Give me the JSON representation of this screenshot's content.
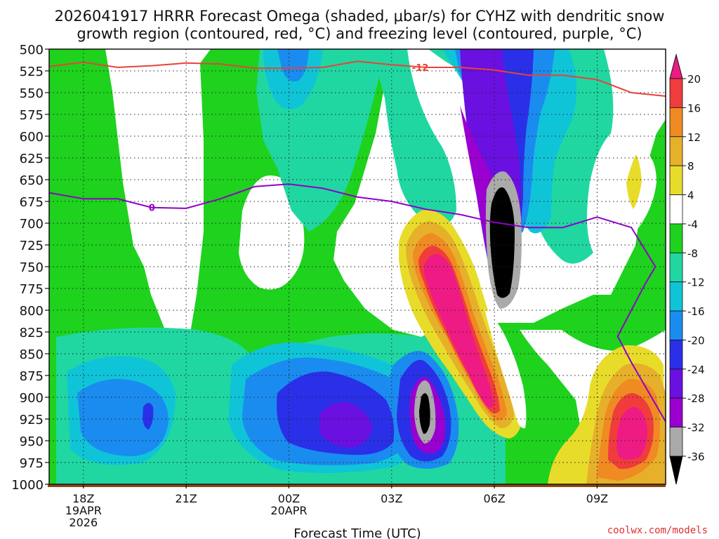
{
  "chart_data": {
    "type": "heatmap",
    "title_line1": "2026041917 HRRR Forecast Omega (shaded, μbar/s) for CYHZ with dendritic snow",
    "title_line2": "growth region (contoured, red, °C) and freezing level (contoured, purple, °C)",
    "xlabel": "Forecast Time (UTC)",
    "ylabel": "",
    "credit": "coolwx.com/models",
    "ylim": [
      1000,
      500
    ],
    "xlim": [
      -1.0,
      17.0
    ],
    "y_ticks": [
      500,
      525,
      550,
      575,
      600,
      625,
      650,
      675,
      700,
      725,
      750,
      775,
      800,
      825,
      850,
      875,
      900,
      925,
      950,
      975,
      1000
    ],
    "x_ticks": [
      {
        "x": 0,
        "label": "18Z",
        "sub1": "19APR",
        "sub2": "2026"
      },
      {
        "x": 3,
        "label": "21Z",
        "sub1": "",
        "sub2": ""
      },
      {
        "x": 6,
        "label": "00Z",
        "sub1": "20APR",
        "sub2": ""
      },
      {
        "x": 9,
        "label": "03Z",
        "sub1": "",
        "sub2": ""
      },
      {
        "x": 12,
        "label": "06Z",
        "sub1": "",
        "sub2": ""
      },
      {
        "x": 15,
        "label": "09Z",
        "sub1": "",
        "sub2": ""
      }
    ],
    "colorbar": {
      "levels": [
        -36,
        -32,
        -28,
        -24,
        -20,
        -16,
        -12,
        -8,
        -4,
        4,
        8,
        12,
        16,
        20
      ],
      "labels": [
        "20",
        "16",
        "12",
        "8",
        "4",
        "-4",
        "-8",
        "-12",
        "-16",
        "-20",
        "-24",
        "-28",
        "-32",
        "-36"
      ],
      "colors": [
        "#000000",
        "#aaaaaa",
        "#9a00d0",
        "#6a10e0",
        "#2a30e8",
        "#1a8cf0",
        "#10c4d8",
        "#20d7a2",
        "#1ed21e",
        "#ffffff",
        "#e8dc2a",
        "#e6b02a",
        "#f08a22",
        "#f03c3c",
        "#ee1b84"
      ]
    },
    "series": [
      {
        "name": "dendritic snow growth region -12°C",
        "color": "#e8423a",
        "label": "-12",
        "points": [
          [
            -1.0,
            520
          ],
          [
            0,
            515
          ],
          [
            1.0,
            521
          ],
          [
            2.0,
            519
          ],
          [
            3.0,
            516
          ],
          [
            4.0,
            517
          ],
          [
            5.0,
            522
          ],
          [
            6.0,
            522
          ],
          [
            7.0,
            521
          ],
          [
            8.0,
            514
          ],
          [
            9.0,
            518
          ],
          [
            10.0,
            521
          ],
          [
            11.0,
            521
          ],
          [
            12.0,
            524
          ],
          [
            13.0,
            530
          ],
          [
            14.0,
            530
          ],
          [
            15.0,
            535
          ],
          [
            16.0,
            550
          ],
          [
            17.0,
            554
          ]
        ]
      },
      {
        "name": "freezing level 0°C",
        "color": "#9000c8",
        "label": "0",
        "points": [
          [
            -1.0,
            665
          ],
          [
            0,
            672
          ],
          [
            1.0,
            672
          ],
          [
            2.0,
            682
          ],
          [
            3.0,
            683
          ],
          [
            4.0,
            672
          ],
          [
            5.0,
            658
          ],
          [
            6.0,
            655
          ],
          [
            7.0,
            660
          ],
          [
            8.0,
            670
          ],
          [
            9.0,
            675
          ],
          [
            10.0,
            684
          ],
          [
            11.0,
            690
          ],
          [
            12.0,
            699
          ],
          [
            13.0,
            705
          ],
          [
            14.0,
            705
          ],
          [
            15.0,
            693
          ],
          [
            16.0,
            705
          ],
          [
            16.7,
            750
          ],
          [
            16.4,
            770
          ],
          [
            15.6,
            830
          ],
          [
            16.0,
            860
          ],
          [
            17.0,
            928
          ]
        ]
      }
    ],
    "fields": [
      {
        "name": "green background",
        "level": "-4 to -8",
        "value": -6
      },
      {
        "name": "strong upward motion core near 06Z",
        "level": "< -36",
        "value": -38
      },
      {
        "name": "strong upward motion core near 04Z",
        "level": "< -36",
        "value": -38
      },
      {
        "name": "descent band 04Z-06Z",
        "level": "> 20",
        "value": 22
      },
      {
        "name": "descent low-level 10Z",
        "level": "> 20",
        "value": 22
      }
    ]
  }
}
